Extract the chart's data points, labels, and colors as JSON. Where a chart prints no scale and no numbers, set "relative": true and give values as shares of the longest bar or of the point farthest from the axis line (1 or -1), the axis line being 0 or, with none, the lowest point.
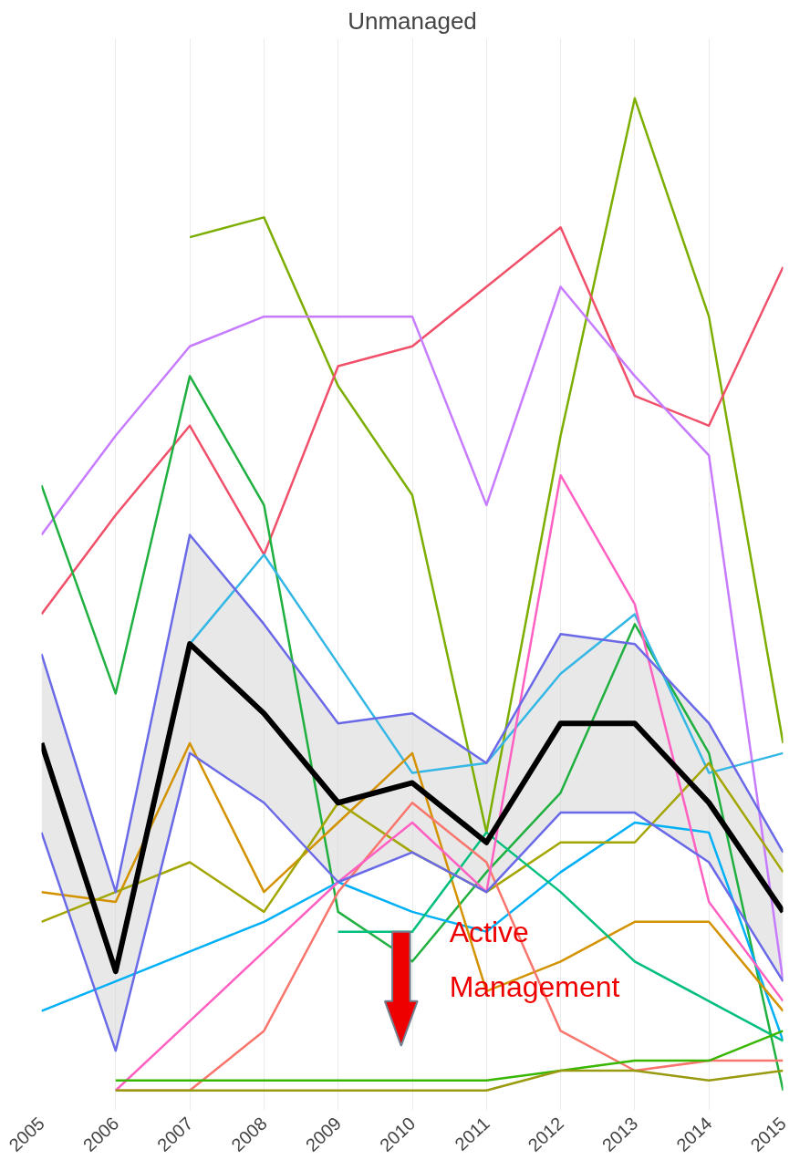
{
  "chart_data": {
    "type": "line",
    "title": "Unmanaged",
    "relative": true,
    "x": [
      2005,
      2006,
      2007,
      2008,
      2009,
      2010,
      2011,
      2012,
      2013,
      2014,
      2015
    ],
    "xlim": [
      2005,
      2015
    ],
    "xticks": [
      2005,
      2006,
      2007,
      2008,
      2009,
      2010,
      2011,
      2012,
      2013,
      2014,
      2015
    ],
    "grid": "x",
    "marker": "none",
    "line_style": "solid",
    "annotations": [
      "Active Management"
    ],
    "series": [
      {
        "color": "#7cae00",
        "values": [
          null,
          null,
          0.86,
          0.88,
          0.71,
          0.6,
          0.26,
          0.66,
          1.0,
          0.78,
          0.35
        ]
      },
      {
        "color": "#f0506a",
        "values": [
          0.48,
          0.58,
          0.67,
          0.54,
          0.73,
          0.75,
          0.81,
          0.87,
          0.7,
          0.67,
          0.83
        ]
      },
      {
        "color": "#c77cff",
        "values": [
          0.56,
          0.66,
          0.75,
          0.78,
          0.78,
          0.78,
          0.59,
          0.81,
          0.72,
          0.64,
          0.11
        ]
      },
      {
        "color": "#1fb040",
        "values": [
          0.61,
          0.4,
          0.72,
          0.59,
          0.18,
          0.13,
          0.22,
          0.3,
          0.47,
          0.34,
          0.0
        ]
      },
      {
        "color": "#00b0f6",
        "values": [
          0.08,
          0.11,
          0.14,
          0.17,
          0.21,
          0.18,
          0.16,
          0.22,
          0.27,
          0.26,
          0.05
        ]
      },
      {
        "color": "#35b7e5",
        "values": [
          null,
          null,
          0.45,
          0.54,
          0.43,
          0.32,
          0.33,
          0.42,
          0.48,
          0.32,
          0.34
        ]
      },
      {
        "color": "#d39200",
        "values": [
          0.2,
          0.19,
          0.35,
          0.2,
          0.27,
          0.34,
          0.1,
          0.13,
          0.17,
          0.17,
          0.08
        ]
      },
      {
        "color": "#a3a500",
        "values": [
          0.17,
          0.2,
          0.23,
          0.18,
          0.29,
          0.24,
          0.2,
          0.25,
          0.25,
          0.33,
          0.22
        ]
      },
      {
        "color": "#00bf7d",
        "values": [
          null,
          null,
          null,
          null,
          0.16,
          0.16,
          0.26,
          0.2,
          0.13,
          0.09,
          0.05
        ]
      },
      {
        "color": "#f8766d",
        "values": [
          null,
          0.0,
          0.0,
          0.06,
          0.2,
          0.29,
          0.23,
          0.06,
          0.02,
          0.03,
          0.03
        ]
      },
      {
        "color": "#ff61c3",
        "values": [
          null,
          0.0,
          0.07,
          0.14,
          0.21,
          0.27,
          0.2,
          0.62,
          0.49,
          0.19,
          0.09
        ]
      },
      {
        "color": "#39b600",
        "values": [
          null,
          0.01,
          0.01,
          0.01,
          0.01,
          0.01,
          0.01,
          0.02,
          0.03,
          0.03,
          0.06
        ]
      },
      {
        "color": "#9a9a10",
        "values": [
          null,
          0.0,
          0.0,
          0.0,
          0.0,
          0.0,
          0.0,
          0.02,
          0.02,
          0.01,
          0.02
        ]
      },
      {
        "color": "#6a6ae8",
        "values": [
          0.44,
          0.2,
          0.56,
          0.47,
          0.37,
          0.38,
          0.33,
          0.46,
          0.45,
          0.37,
          0.24
        ]
      },
      {
        "color": "#6a6ae8",
        "values": [
          0.26,
          0.04,
          0.34,
          0.29,
          0.21,
          0.24,
          0.2,
          0.28,
          0.28,
          0.23,
          0.11
        ]
      },
      {
        "color": "#000000",
        "values": [
          0.35,
          0.12,
          0.45,
          0.38,
          0.29,
          0.31,
          0.25,
          0.37,
          0.37,
          0.29,
          0.18
        ],
        "lower": [
          0.26,
          0.04,
          0.34,
          0.29,
          0.21,
          0.24,
          0.2,
          0.28,
          0.28,
          0.23,
          0.11
        ],
        "upper": [
          0.44,
          0.2,
          0.56,
          0.47,
          0.37,
          0.38,
          0.33,
          0.46,
          0.45,
          0.37,
          0.24
        ]
      }
    ]
  }
}
